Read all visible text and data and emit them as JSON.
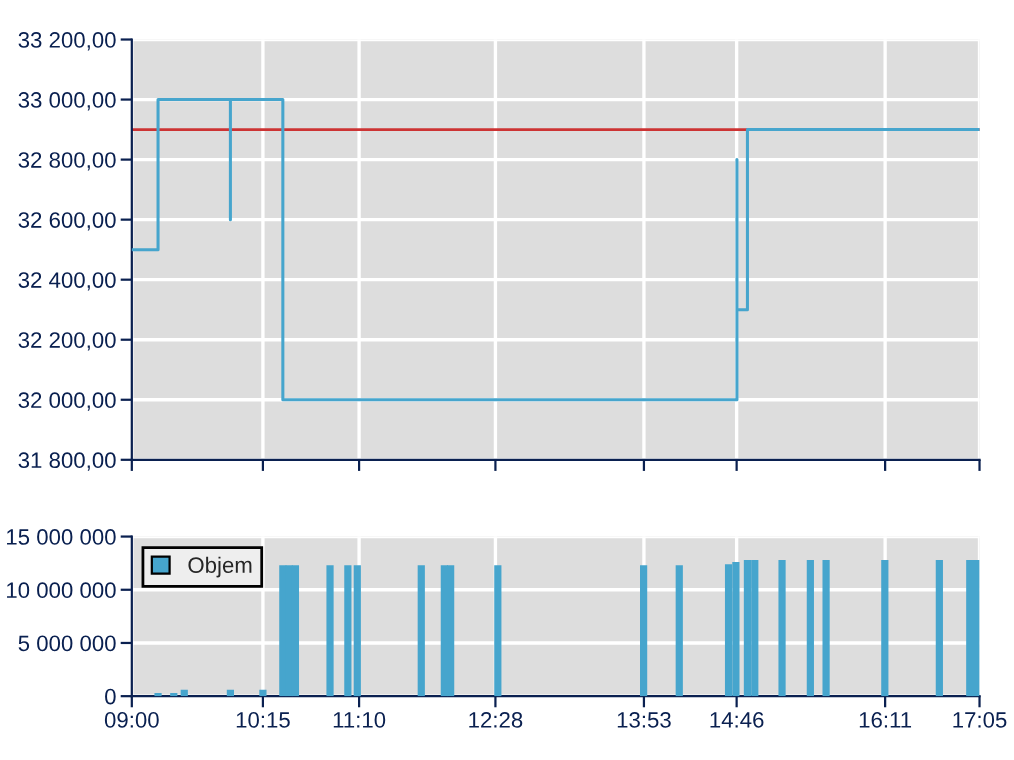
{
  "chart_data": [
    {
      "type": "line",
      "tick_labels": "y",
      "grid": true,
      "legend": false,
      "xlim": [
        9,
        17.083
      ],
      "xticks": [
        {
          "value": 9,
          "label": null
        },
        {
          "value": 10.25,
          "label": null
        },
        {
          "value": 11.167,
          "label": null
        },
        {
          "value": 12.467,
          "label": null
        },
        {
          "value": 13.883,
          "label": null
        },
        {
          "value": 14.767,
          "label": null
        },
        {
          "value": 16.183,
          "label": null
        },
        {
          "value": 17.083,
          "label": null
        }
      ],
      "ylim": [
        31800,
        33200
      ],
      "yticks": [
        {
          "value": 31800,
          "label": "31 800,00"
        },
        {
          "value": 32000,
          "label": "32 000,00"
        },
        {
          "value": 32200,
          "label": "32 200,00"
        },
        {
          "value": 32400,
          "label": "32 400,00"
        },
        {
          "value": 32600,
          "label": "32 600,00"
        },
        {
          "value": 32800,
          "label": "32 800,00"
        },
        {
          "value": 33000,
          "label": "33 000,00"
        },
        {
          "value": 33200,
          "label": "33 200,00"
        }
      ],
      "series": [
        {
          "color": "#46a5cd",
          "x": [
            9,
            9.25,
            9.25,
            9.94,
            9.94,
            9.94,
            10.44,
            10.44,
            14.77,
            14.77,
            14.77,
            14.87,
            14.87,
            17.083
          ],
          "values": [
            32500,
            32500,
            33000,
            33000,
            32600,
            33000,
            33000,
            32000,
            32000,
            32800,
            32300,
            32300,
            32900,
            32900
          ]
        }
      ],
      "ref_lines": [
        {
          "axis": "y",
          "value": 32900,
          "color": "#cc3333"
        }
      ]
    },
    {
      "type": "bar",
      "grid": true,
      "legend": "top left",
      "xlim": [
        9,
        17.083
      ],
      "xticks": [
        {
          "value": 9,
          "label": "09:00"
        },
        {
          "value": 10.25,
          "label": "10:15"
        },
        {
          "value": 11.167,
          "label": "11:10"
        },
        {
          "value": 12.467,
          "label": "12:28"
        },
        {
          "value": 13.883,
          "label": "13:53"
        },
        {
          "value": 14.767,
          "label": "14:46"
        },
        {
          "value": 16.183,
          "label": "16:11"
        },
        {
          "value": 17.083,
          "label": "17:05"
        }
      ],
      "ylim": [
        0,
        15000000
      ],
      "yticks": [
        {
          "value": 0,
          "label": "0"
        },
        {
          "value": 5000000,
          "label": "5 000 000"
        },
        {
          "value": 10000000,
          "label": "10 000 000"
        },
        {
          "value": 15000000,
          "label": "15 000 000"
        }
      ],
      "series": [
        {
          "name": "Objem",
          "color": "#46a5cd",
          "x": [
            9.25,
            9.4,
            9.5,
            9.94,
            10.25,
            10.44,
            10.5,
            10.56,
            10.89,
            11.06,
            11.15,
            11.76,
            11.98,
            12.04,
            12.49,
            13.88,
            14.22,
            14.69,
            14.76,
            14.87,
            14.94,
            15.2,
            15.47,
            15.62,
            16.18,
            16.7,
            16.99,
            17.05
          ],
          "values": [
            300000,
            300000,
            600000,
            600000,
            600000,
            12300000,
            12300000,
            12300000,
            12300000,
            12300000,
            12300000,
            12300000,
            12300000,
            12300000,
            12300000,
            12300000,
            12300000,
            12400000,
            12600000,
            12800000,
            12800000,
            12800000,
            12800000,
            12800000,
            12800000,
            12800000,
            12800000,
            12800000
          ]
        }
      ]
    }
  ]
}
